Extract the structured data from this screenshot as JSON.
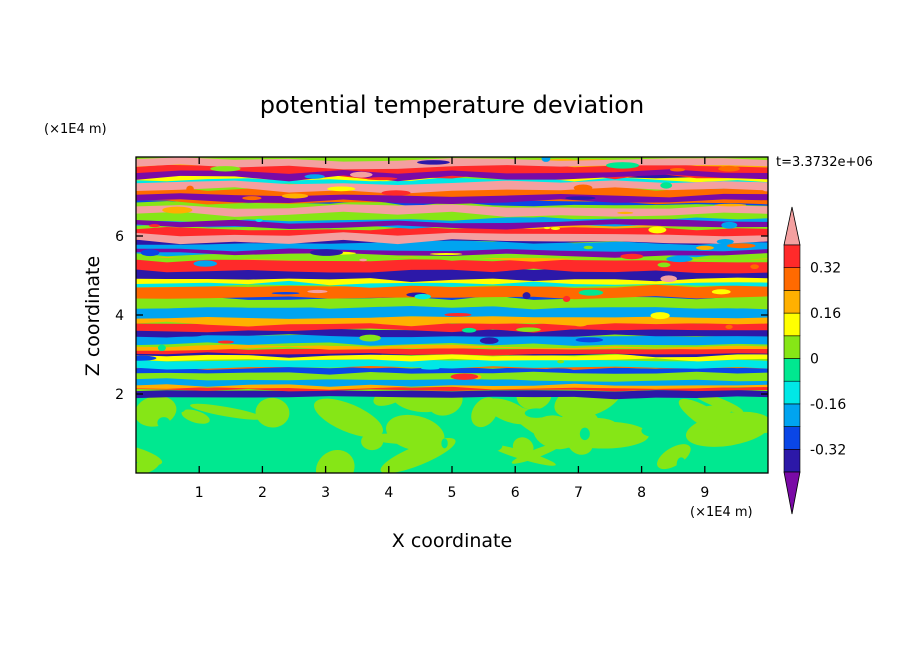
{
  "chart_data": {
    "type": "heatmap",
    "title": "potential temperature deviation",
    "xlabel": "X coordinate",
    "ylabel": "Z coordinate",
    "x_unit": "(×1E4 m)",
    "y_unit": "(×1E4 m)",
    "time_label": "t=3.3732e+06",
    "xlim": [
      0,
      10
    ],
    "ylim": [
      0,
      8
    ],
    "x_ticks": [
      1,
      2,
      3,
      4,
      5,
      6,
      7,
      8,
      9
    ],
    "y_ticks": [
      2,
      4,
      6
    ],
    "colorbar": {
      "levels": [
        -0.4,
        -0.32,
        -0.24,
        -0.16,
        -0.08,
        0,
        0.08,
        0.16,
        0.24,
        0.32,
        0.4
      ],
      "tick_labels": [
        "0.32",
        "0.16",
        "0",
        "-0.16",
        "-0.32"
      ],
      "tick_values": [
        0.32,
        0.16,
        0,
        -0.16,
        -0.32
      ],
      "colors": [
        "#7a0aa6",
        "#2c18a8",
        "#0a46e6",
        "#00a4f0",
        "#00e8e6",
        "#00e890",
        "#86e616",
        "#ffff00",
        "#ffb000",
        "#ff6a00",
        "#ff2a2a",
        "#f4a0a0"
      ],
      "extend": "both"
    },
    "field_summary": {
      "lower_layer_z_range": [
        0,
        2
      ],
      "lower_layer_value_range": [
        -0.08,
        0.08
      ],
      "upper_layer_z_range": [
        2,
        8
      ],
      "upper_layer_value_range": [
        -0.4,
        0.4
      ],
      "upper_layer_pattern": "horizontal stratified bands"
    }
  }
}
